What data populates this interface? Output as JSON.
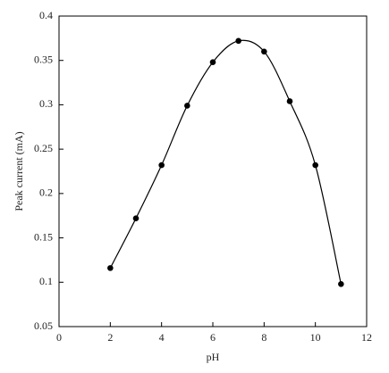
{
  "chart_data": {
    "type": "scatter",
    "x_label": "pH",
    "y_label": "Peak current (mA)",
    "x": [
      2,
      3,
      4,
      5,
      6,
      7,
      8,
      9,
      10,
      11
    ],
    "values": [
      0.116,
      0.172,
      0.232,
      0.299,
      0.348,
      0.372,
      0.36,
      0.304,
      0.232,
      0.098
    ],
    "color": "#000000",
    "smooth_line": true,
    "xlim": [
      0,
      12
    ],
    "xticks": [
      0,
      2,
      4,
      6,
      8,
      10,
      12
    ],
    "ylim": [
      0.05,
      0.4
    ],
    "yticks": [
      0.05,
      0.1,
      0.15,
      0.2,
      0.25,
      0.3,
      0.35,
      0.4
    ],
    "grid": false
  }
}
